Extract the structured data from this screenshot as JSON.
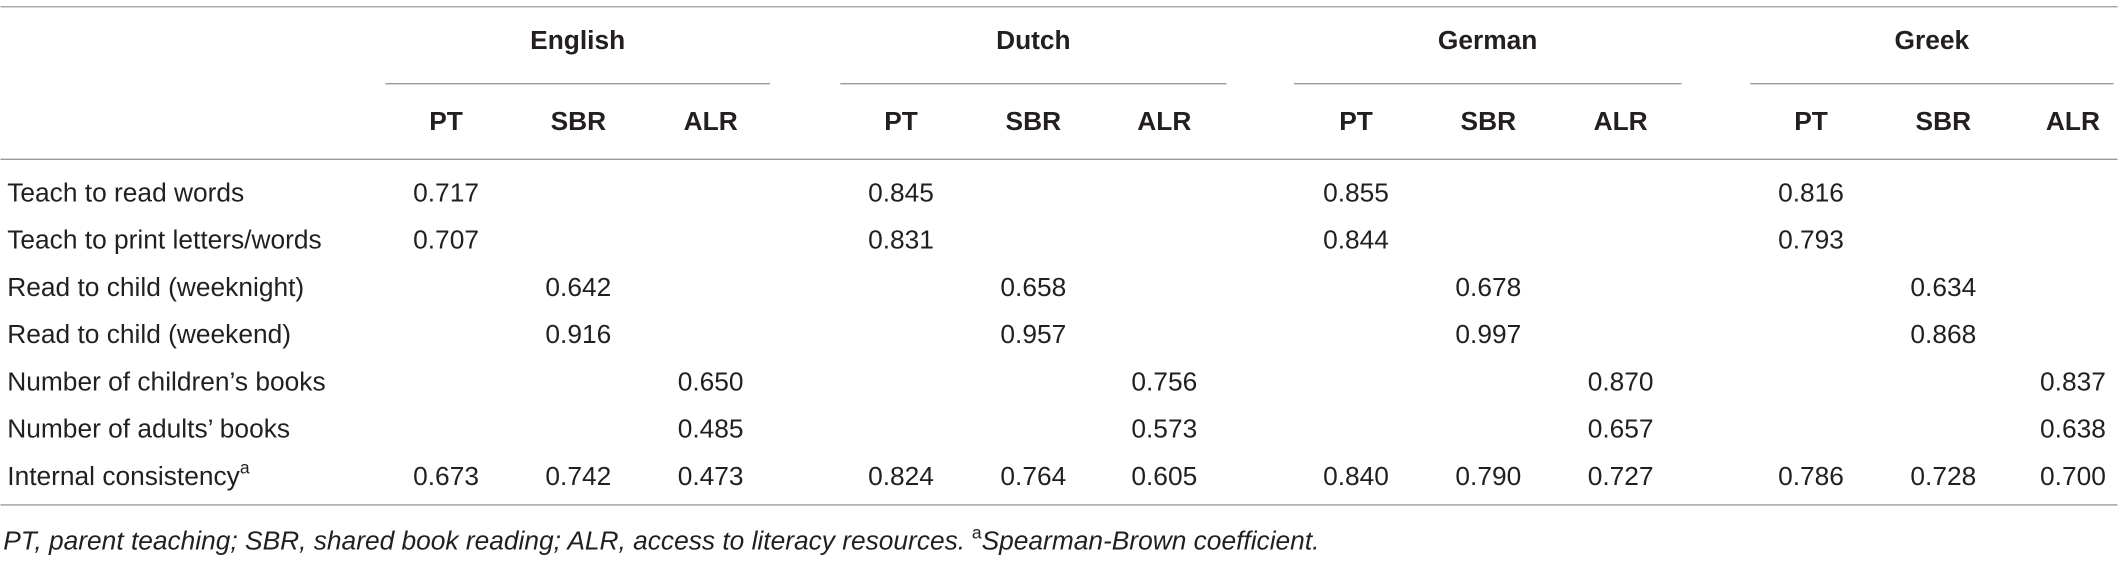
{
  "table": {
    "groups": [
      {
        "name": "English",
        "columns": [
          "PT",
          "SBR",
          "ALR"
        ]
      },
      {
        "name": "Dutch",
        "columns": [
          "PT",
          "SBR",
          "ALR"
        ]
      },
      {
        "name": "German",
        "columns": [
          "PT",
          "SBR",
          "ALR"
        ]
      },
      {
        "name": "Greek",
        "columns": [
          "PT",
          "SBR",
          "ALR"
        ]
      }
    ],
    "rows": [
      {
        "label": "Teach to read words",
        "cells": [
          "0.717",
          null,
          null,
          "0.845",
          null,
          null,
          "0.855",
          null,
          null,
          "0.816",
          null,
          null
        ]
      },
      {
        "label": "Teach to print letters/words",
        "cells": [
          "0.707",
          null,
          null,
          "0.831",
          null,
          null,
          "0.844",
          null,
          null,
          "0.793",
          null,
          null
        ]
      },
      {
        "label": "Read to child (weeknight)",
        "cells": [
          null,
          "0.642",
          null,
          null,
          "0.658",
          null,
          null,
          "0.678",
          null,
          null,
          "0.634",
          null
        ]
      },
      {
        "label": "Read to child (weekend)",
        "cells": [
          null,
          "0.916",
          null,
          null,
          "0.957",
          null,
          null,
          "0.997",
          null,
          null,
          "0.868",
          null
        ]
      },
      {
        "label": "Number of children’s books",
        "cells": [
          null,
          null,
          "0.650",
          null,
          null,
          "0.756",
          null,
          null,
          "0.870",
          null,
          null,
          "0.837"
        ]
      },
      {
        "label": "Number of adults’ books",
        "cells": [
          null,
          null,
          "0.485",
          null,
          null,
          "0.573",
          null,
          null,
          "0.657",
          null,
          null,
          "0.638"
        ]
      },
      {
        "label": "Internal consistency",
        "label_sup": "a",
        "cells": [
          "0.673",
          "0.742",
          "0.473",
          "0.824",
          "0.764",
          "0.605",
          "0.840",
          "0.790",
          "0.727",
          "0.786",
          "0.728",
          "0.700"
        ]
      }
    ],
    "footnote": {
      "text": "PT, parent teaching; SBR, shared book reading; ALR, access to literacy resources.",
      "sup": "a",
      "note": "Spearman-Brown coefficient."
    }
  }
}
